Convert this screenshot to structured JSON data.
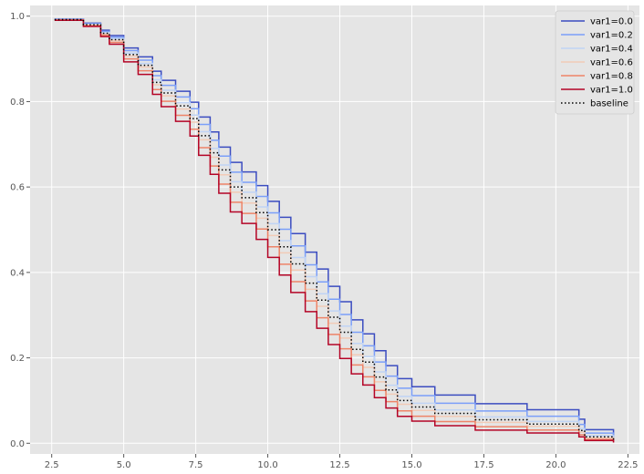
{
  "chart_data": {
    "type": "line",
    "title": "",
    "xlabel": "",
    "ylabel": "",
    "xlim": [
      1.75,
      22.9
    ],
    "ylim": [
      -0.025,
      1.025
    ],
    "xticks": [
      2.5,
      5.0,
      7.5,
      10.0,
      12.5,
      15.0,
      17.5,
      20.0,
      22.5
    ],
    "xtick_labels": [
      "2.5",
      "5.0",
      "7.5",
      "10.0",
      "12.5",
      "15.0",
      "17.5",
      "20.0",
      "22.5"
    ],
    "yticks": [
      0.0,
      0.2,
      0.4,
      0.6,
      0.8,
      1.0
    ],
    "ytick_labels": [
      "0.0",
      "0.2",
      "0.4",
      "0.6",
      "0.8",
      "1.0"
    ],
    "grid": true,
    "legend_position": "top-right",
    "baseline_times": [
      2.6,
      3.6,
      4.2,
      4.5,
      5.0,
      5.5,
      6.0,
      6.3,
      6.8,
      7.3,
      7.6,
      8.0,
      8.3,
      8.7,
      9.1,
      9.6,
      10.0,
      10.4,
      10.8,
      11.3,
      11.7,
      12.1,
      12.5,
      12.9,
      13.3,
      13.7,
      14.1,
      14.5,
      15.0,
      15.8,
      17.2,
      19.0,
      20.8,
      21.0,
      22.0
    ],
    "baseline_survival": [
      0.992,
      0.98,
      0.96,
      0.945,
      0.91,
      0.885,
      0.845,
      0.82,
      0.79,
      0.76,
      0.72,
      0.68,
      0.64,
      0.6,
      0.575,
      0.54,
      0.5,
      0.46,
      0.42,
      0.375,
      0.335,
      0.295,
      0.26,
      0.22,
      0.19,
      0.155,
      0.125,
      0.1,
      0.085,
      0.07,
      0.055,
      0.045,
      0.03,
      0.015,
      0.005
    ],
    "series": [
      {
        "name": "var1=0.0",
        "color": "#3b4cc0",
        "style": "solid",
        "scale": 0.82
      },
      {
        "name": "var1=0.2",
        "color": "#7b9ff9",
        "style": "solid",
        "scale": 0.89
      },
      {
        "name": "var1=0.4",
        "color": "#c0d4f5",
        "style": "solid",
        "scale": 0.96
      },
      {
        "name": "var1=0.6",
        "color": "#f2cbb7",
        "style": "solid",
        "scale": 1.04
      },
      {
        "name": "var1=0.8",
        "color": "#ee8468",
        "style": "solid",
        "scale": 1.12
      },
      {
        "name": "var1=1.0",
        "color": "#b40426",
        "style": "solid",
        "scale": 1.2
      },
      {
        "name": "baseline",
        "color": "#000000",
        "style": "dotted",
        "scale": 1.0
      }
    ]
  }
}
